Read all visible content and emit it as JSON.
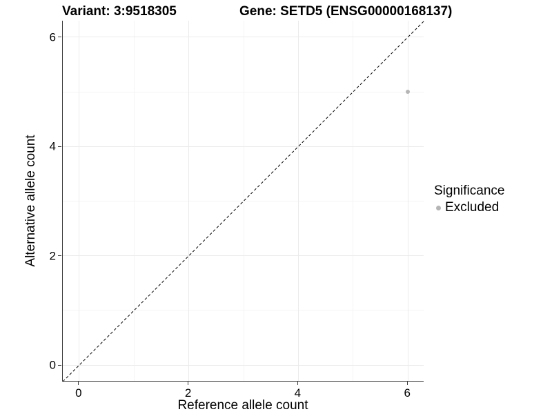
{
  "titles": {
    "variant": "Variant: 3:9518305",
    "gene": "Gene: SETD5 (ENSG00000168137)"
  },
  "legend": {
    "title": "Significance",
    "items": [
      {
        "label": "Excluded",
        "color": "#b5b5b5",
        "marker": "dot"
      }
    ]
  },
  "chart_data": {
    "type": "scatter",
    "title_left": "Variant: 3:9518305",
    "title_right": "Gene: SETD5 (ENSG00000168137)",
    "xlabel": "Reference allele count",
    "ylabel": "Alternative allele count",
    "xlim": [
      -0.3,
      6.3
    ],
    "ylim": [
      -0.3,
      6.3
    ],
    "x_ticks": [
      0,
      2,
      4,
      6
    ],
    "y_ticks": [
      0,
      2,
      4,
      6
    ],
    "x_minor_ticks": [
      1,
      3,
      5
    ],
    "y_minor_ticks": [
      1,
      3,
      5
    ],
    "grid": "on",
    "legend_position": "right",
    "series": [
      {
        "name": "Excluded",
        "color": "#b5b5b5",
        "points": [
          {
            "x": 6,
            "y": 5
          }
        ]
      }
    ],
    "reference_line": {
      "style": "dashed",
      "slope": 1,
      "intercept": 0,
      "color": "#000000"
    }
  },
  "colors": {
    "background": "#ffffff",
    "axis_line": "#3c3c3c",
    "tick_label": "#000000",
    "grid_major": "#ebebeb",
    "grid_minor": "#f4f4f4",
    "point": "#b5b5b5",
    "reference_line": "#000000"
  }
}
